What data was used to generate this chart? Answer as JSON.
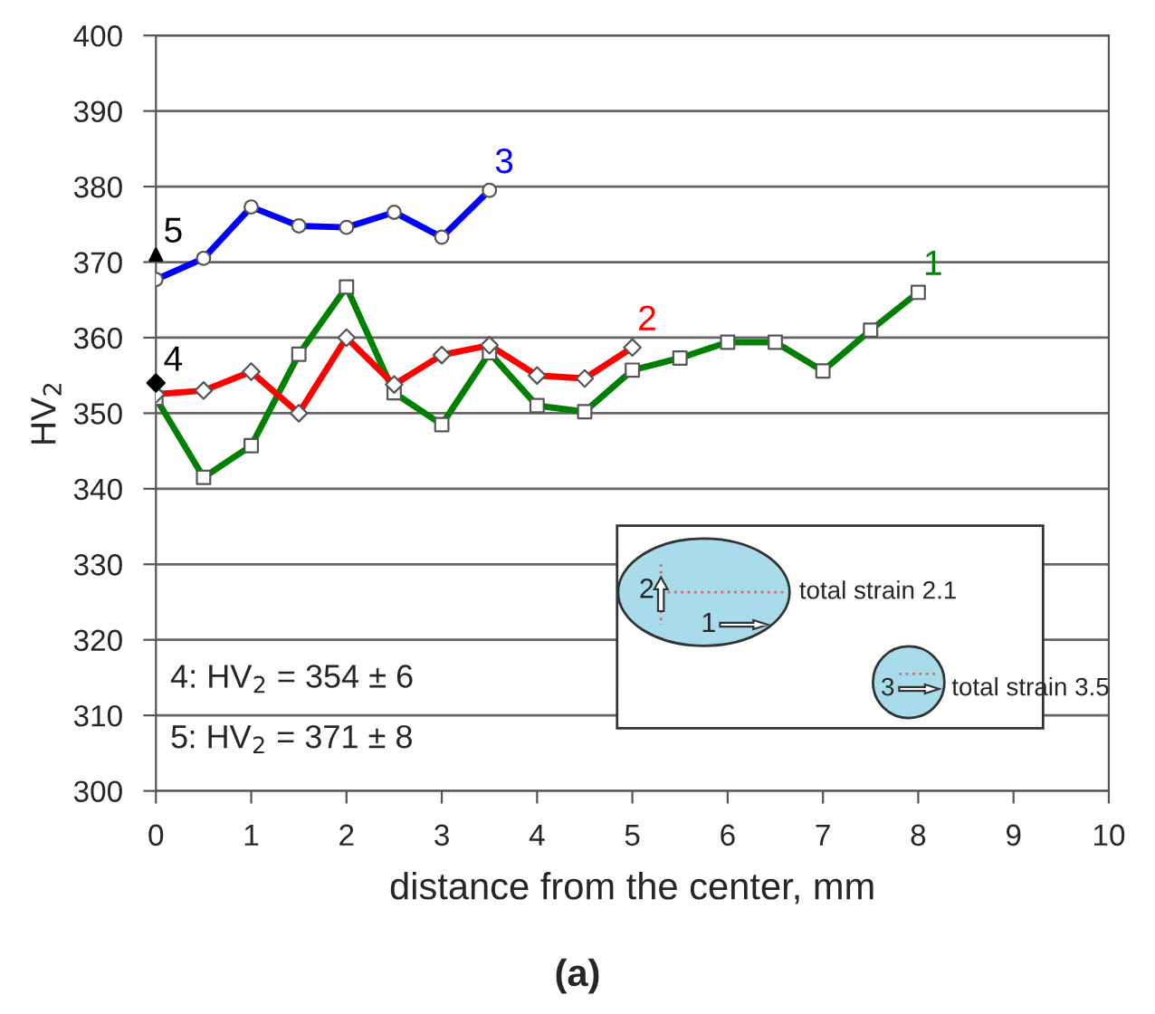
{
  "chart_data": {
    "type": "line",
    "xlabel": "distance from the center, mm",
    "ylabel": "HV$_{2}$",
    "xlim": [
      0,
      10
    ],
    "xticks": [
      0,
      1,
      2,
      3,
      4,
      5,
      6,
      7,
      8,
      9,
      10
    ],
    "ylim": [
      300,
      400
    ],
    "yticks": [
      300,
      310,
      320,
      330,
      340,
      350,
      360,
      370,
      380,
      390,
      400
    ],
    "grid": "y",
    "legend": false,
    "line_style": "solid",
    "series": [
      {
        "name": "1",
        "color": "#008000",
        "marker": "square",
        "x": [
          0,
          0.5,
          1,
          1.5,
          2,
          2.5,
          3,
          3.5,
          4,
          4.5,
          5,
          5.5,
          6,
          6.5,
          7,
          7.5,
          8
        ],
        "values": [
          352,
          341.5,
          345.7,
          357.8,
          366.7,
          352.7,
          348.5,
          358,
          351,
          350.2,
          355.7,
          357.3,
          359.4,
          359.4,
          355.6,
          361,
          366
        ]
      },
      {
        "name": "2",
        "color": "#ff0000",
        "marker": "diamond",
        "x": [
          0,
          0.5,
          1,
          1.5,
          2,
          2.5,
          3,
          3.5,
          4,
          4.5,
          5
        ],
        "values": [
          352.5,
          353,
          355.5,
          350,
          360,
          353.8,
          357.7,
          359,
          355,
          354.6,
          358.7
        ]
      },
      {
        "name": "3",
        "color": "#0000ff",
        "marker": "circle",
        "x": [
          0,
          0.5,
          1,
          1.5,
          2,
          2.5,
          3,
          3.5
        ],
        "values": [
          367.7,
          370.5,
          377.3,
          374.8,
          374.6,
          376.6,
          373.3,
          379.5
        ]
      },
      {
        "name": "4",
        "type": "scatter",
        "color": "#000000",
        "marker": "diamond",
        "x": [
          0
        ],
        "values": [
          354
        ]
      },
      {
        "name": "5",
        "type": "scatter",
        "color": "#000000",
        "marker": "triangle",
        "x": [
          0
        ],
        "values": [
          371
        ]
      }
    ],
    "annotations": [
      "4: HV$_{2}$ = 354 ± 6",
      "5: HV$_{2}$ = 371 ± 8",
      "(a)",
      "2",
      "1",
      "total strain 2.1",
      "3",
      "total strain 3.5"
    ]
  }
}
